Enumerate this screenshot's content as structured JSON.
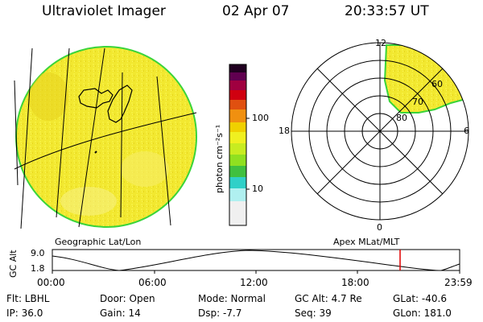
{
  "header": {
    "instrument": "Ultraviolet Imager",
    "date": "02 Apr 07",
    "time": "20:33:57 UT"
  },
  "colorbar": {
    "unit_label": "photon cm⁻²s⁻¹",
    "ticks": [
      "100",
      "10"
    ],
    "colors": [
      "#f0f0f0",
      "#b0f0f0",
      "#30d0c8",
      "#40c040",
      "#90e020",
      "#f0f020",
      "#f0d000",
      "#f09010",
      "#e05010",
      "#d00010",
      "#a00040",
      "#600050",
      "#200020"
    ]
  },
  "left_map": {
    "caption": "Geographic Lat/Lon",
    "fill_color": "#f2e830",
    "limb_color": "#3ad43a"
  },
  "right_map": {
    "caption": "Apex MLat/MLT",
    "mlt_labels": {
      "top": "12",
      "right": "6",
      "bottom": "0",
      "left": "18"
    },
    "lat_labels": [
      "60",
      "70",
      "80"
    ],
    "fill_color": "#f2e830",
    "limb_color": "#3ad43a"
  },
  "altitude_plot": {
    "axis_title": "GC Alt",
    "y_ticks": [
      "9.0",
      "1.8"
    ],
    "x_ticks": [
      "00:00",
      "06:00",
      "12:00",
      "18:00",
      "23:59"
    ],
    "marker_color": "#e00000"
  },
  "footer": {
    "flt": "Flt: LBHL",
    "door": "Door: Open",
    "mode": "Mode: Normal",
    "gc_alt": "GC Alt: 4.7 Re",
    "glat": "GLat: -40.6",
    "ip": "IP: 36.0",
    "gain": "Gain: 14",
    "dsp": "Dsp:   -7.7",
    "seq": "Seq: 39",
    "glon": "GLon: 181.0"
  }
}
